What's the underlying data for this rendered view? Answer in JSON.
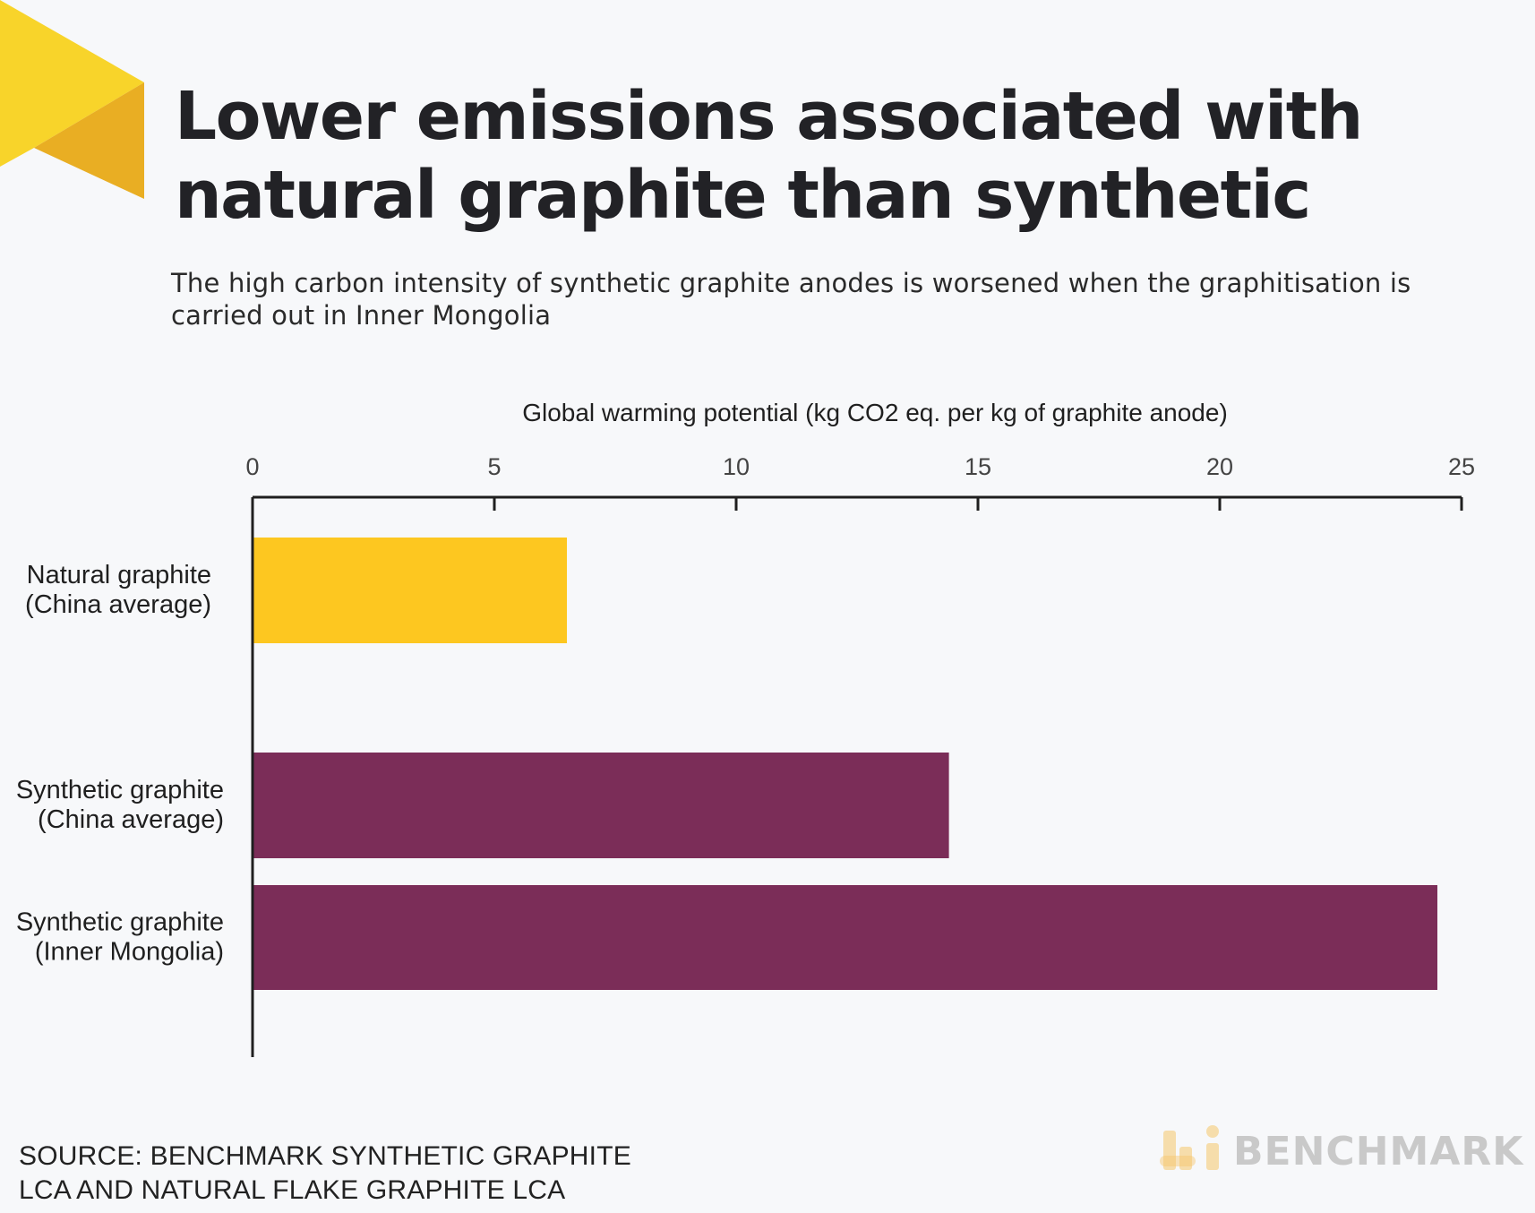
{
  "title": "Lower emissions associated with natural graphite than synthetic",
  "subtitle": "The high carbon intensity of synthetic graphite anodes is worsened when the graphitisation is carried out in Inner Mongolia",
  "source_lines": [
    "SOURCE: BENCHMARK SYNTHETIC GRAPHITE",
    "LCA AND NATURAL FLAKE GRAPHITE LCA"
  ],
  "brand": {
    "name": "BENCHMARK",
    "icon": "benchmark-logo-icon"
  },
  "colors": {
    "natural": "#fdc720",
    "synthetic": "#7b2d58",
    "axis": "#1f1f1f",
    "deco_light": "#f8d42a",
    "deco_dark": "#e9ae23",
    "brand_text": "#c9c9c9"
  },
  "chart_data": {
    "type": "bar",
    "orientation": "horizontal",
    "xlabel": "Global warming potential (kg CO2 eq. per kg of graphite anode)",
    "ylabel": "",
    "xlim": [
      0,
      25
    ],
    "ticks": [
      0,
      5,
      10,
      15,
      20,
      25
    ],
    "tick_labels": [
      "0",
      "5",
      "10",
      "15",
      "20",
      "25"
    ],
    "axis_position": "top",
    "grid": false,
    "categories": [
      [
        "Natural graphite",
        "(China average)"
      ],
      [
        "Synthetic graphite",
        "(China average)"
      ],
      [
        "Synthetic graphite",
        "(Inner Mongolia)"
      ]
    ],
    "values": [
      6.5,
      14.4,
      24.5
    ],
    "bar_colors": [
      "#fdc720",
      "#7b2d58",
      "#7b2d58"
    ]
  }
}
